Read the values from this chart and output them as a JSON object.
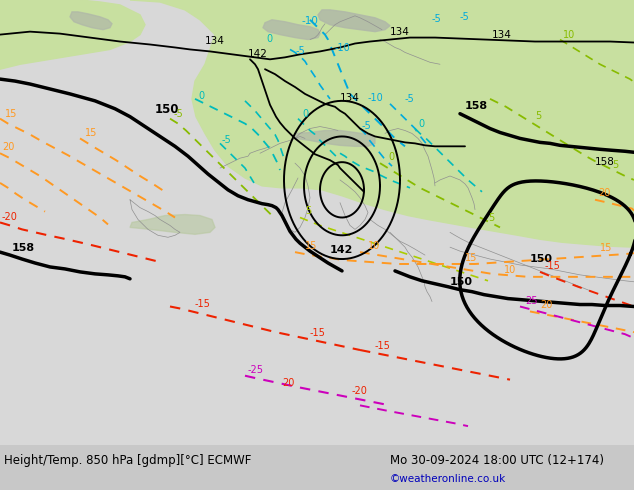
{
  "title_left": "Height/Temp. 850 hPa [gdmp][°C] ECMWF",
  "title_right": "Mo 30-09-2024 18:00 UTC (12+174)",
  "copyright": "©weatheronline.co.uk",
  "bg_outer": "#c8c8c8",
  "land_green": "#c8e0a0",
  "land_light_green": "#d8eab0",
  "ocean_gray": "#d8d8d8",
  "ocean_light": "#e0e0e0",
  "mountain_gray": "#b0b8a8",
  "border_gray": "#909090",
  "text_color": "#000000",
  "copyright_color": "#0000bb",
  "col_height": "#000000",
  "col_temp_blue": "#00aadd",
  "col_temp_cyan": "#00bbbb",
  "col_temp_green_dark": "#88bb00",
  "col_temp_green_light": "#aacc44",
  "col_temp_orange": "#ff9922",
  "col_temp_red": "#ee2200",
  "col_temp_magenta": "#cc00bb"
}
